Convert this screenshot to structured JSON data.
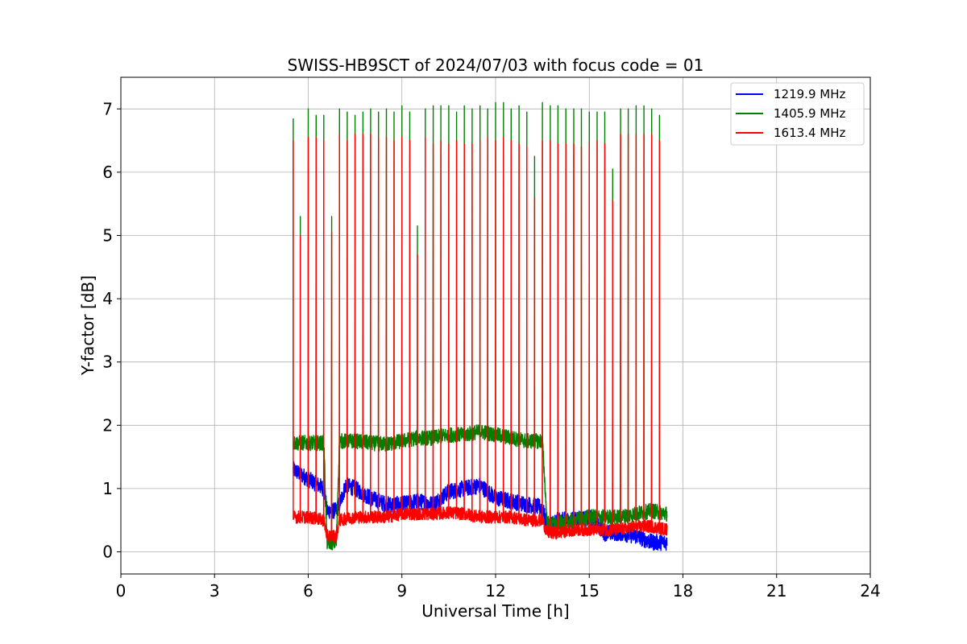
{
  "chart_data": {
    "type": "line",
    "title": "SWISS-HB9SCT of 2024/07/03 with focus code = 01",
    "xlabel": "Universal Time [h]",
    "ylabel": "Y-factor [dB]",
    "xlim": [
      0,
      24
    ],
    "ylim": [
      -0.35,
      7.5
    ],
    "xticks": [
      0,
      3,
      6,
      9,
      12,
      15,
      18,
      21,
      24
    ],
    "yticks": [
      0,
      1,
      2,
      3,
      4,
      5,
      6,
      7
    ],
    "grid": true,
    "legend_position": "top-right",
    "series": [
      {
        "name": "1219.9 MHz",
        "color": "#0000ff",
        "x": [
          5.52,
          6.0,
          6.5,
          6.6,
          6.9,
          7.0,
          7.2,
          7.5,
          8.0,
          8.5,
          9.0,
          9.5,
          10.0,
          10.5,
          11.0,
          11.5,
          12.0,
          12.5,
          13.0,
          13.5,
          13.65,
          14.0,
          14.5,
          15.0,
          15.5,
          16.0,
          16.5,
          17.0,
          17.5
        ],
        "y": [
          1.3,
          1.15,
          1.0,
          0.65,
          0.65,
          0.75,
          1.05,
          1.0,
          0.85,
          0.75,
          0.75,
          0.8,
          0.75,
          0.95,
          1.0,
          1.05,
          0.85,
          0.8,
          0.75,
          0.7,
          0.4,
          0.5,
          0.5,
          0.55,
          0.3,
          0.3,
          0.25,
          0.15,
          0.15
        ]
      },
      {
        "name": "1405.9 MHz",
        "color": "#008000",
        "x": [
          5.52,
          6.0,
          6.5,
          6.6,
          6.9,
          7.0,
          7.5,
          8.0,
          8.5,
          9.0,
          9.5,
          10.0,
          10.5,
          11.0,
          11.5,
          12.0,
          12.5,
          13.0,
          13.5,
          13.65,
          14.0,
          14.5,
          15.0,
          15.5,
          16.0,
          16.5,
          17.0,
          17.5
        ],
        "y": [
          1.72,
          1.72,
          1.72,
          0.15,
          0.15,
          1.75,
          1.75,
          1.72,
          1.7,
          1.75,
          1.8,
          1.8,
          1.85,
          1.85,
          1.9,
          1.85,
          1.8,
          1.75,
          1.75,
          0.45,
          0.45,
          0.5,
          0.55,
          0.55,
          0.55,
          0.6,
          0.65,
          0.6
        ]
      },
      {
        "name": "1613.4 MHz",
        "color": "#ff0000",
        "x": [
          5.52,
          6.0,
          6.5,
          6.6,
          6.9,
          7.0,
          7.5,
          8.0,
          8.5,
          9.0,
          9.5,
          10.0,
          10.5,
          11.0,
          11.5,
          12.0,
          12.5,
          13.0,
          13.5,
          13.65,
          14.0,
          14.5,
          15.0,
          15.5,
          16.0,
          16.5,
          17.0,
          17.5
        ],
        "y": [
          0.55,
          0.55,
          0.5,
          0.25,
          0.25,
          0.5,
          0.55,
          0.55,
          0.55,
          0.6,
          0.6,
          0.6,
          0.62,
          0.6,
          0.55,
          0.55,
          0.55,
          0.5,
          0.5,
          0.3,
          0.3,
          0.35,
          0.35,
          0.35,
          0.35,
          0.4,
          0.4,
          0.35
        ]
      }
    ],
    "calibration_spikes": {
      "times": [
        5.52,
        5.75,
        6.0,
        6.25,
        6.5,
        6.75,
        7.0,
        7.25,
        7.5,
        7.75,
        8.0,
        8.25,
        8.5,
        8.75,
        9.0,
        9.25,
        9.5,
        9.75,
        10.0,
        10.25,
        10.5,
        10.75,
        11.0,
        11.25,
        11.5,
        11.75,
        12.0,
        12.25,
        12.5,
        12.75,
        13.0,
        13.25,
        13.5,
        13.75,
        14.0,
        14.25,
        14.5,
        14.75,
        15.0,
        15.25,
        15.5,
        15.75,
        16.0,
        16.25,
        16.5,
        16.75,
        17.0,
        17.25
      ],
      "peak_1405.9": [
        6.85,
        5.3,
        7.0,
        6.9,
        6.9,
        5.3,
        7.0,
        6.95,
        6.9,
        6.95,
        7.0,
        6.95,
        7.0,
        6.95,
        7.05,
        6.95,
        5.15,
        7.0,
        7.05,
        7.05,
        7.05,
        6.95,
        7.05,
        7.0,
        7.05,
        7.0,
        7.1,
        7.1,
        7.0,
        7.05,
        6.95,
        6.25,
        7.1,
        7.05,
        7.05,
        7.0,
        7.0,
        7.0,
        6.95,
        6.95,
        6.95,
        6.05,
        7.0,
        7.0,
        7.05,
        7.05,
        7.0,
        6.9
      ],
      "peak_1613.4": [
        6.5,
        5.0,
        6.55,
        6.55,
        6.5,
        5.05,
        6.6,
        6.5,
        6.6,
        6.6,
        6.6,
        6.55,
        6.55,
        6.5,
        6.55,
        6.5,
        4.7,
        6.55,
        6.45,
        6.5,
        6.45,
        6.5,
        6.45,
        6.45,
        6.5,
        6.55,
        6.5,
        6.55,
        6.5,
        6.45,
        6.4,
        5.6,
        6.5,
        6.5,
        6.45,
        6.45,
        6.45,
        6.4,
        6.45,
        6.5,
        6.45,
        5.55,
        6.6,
        6.6,
        6.6,
        6.6,
        6.6,
        6.5
      ]
    }
  }
}
